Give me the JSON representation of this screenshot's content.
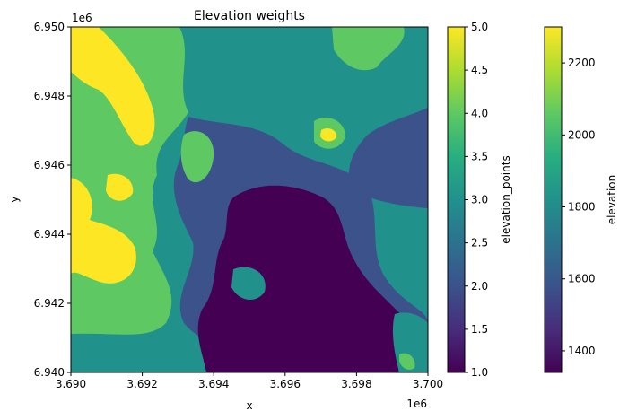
{
  "chart_data": {
    "type": "heatmap",
    "title": "Elevation weights",
    "xlabel": "x",
    "ylabel": "y",
    "x_offset_label": "1e6",
    "y_offset_label": "1e6",
    "xlim": [
      3.69,
      3.7
    ],
    "ylim": [
      6.94,
      6.95
    ],
    "x_ticks": [
      "3.690",
      "3.692",
      "3.694",
      "3.696",
      "3.698",
      "3.700"
    ],
    "y_ticks": [
      "6.940",
      "6.942",
      "6.944",
      "6.946",
      "6.948",
      "6.950"
    ],
    "grid": false,
    "values": {
      "description_levels": [
        1,
        2,
        3,
        4,
        5
      ],
      "approximate_regions": [
        {
          "region": "upper-left ridge",
          "level": 5
        },
        {
          "region": "left-middle ridge",
          "level": 5
        },
        {
          "region": "upper-right plateau",
          "level": 3
        },
        {
          "region": "centre basin",
          "level": 1
        },
        {
          "region": "lower-centre basin",
          "level": 1
        },
        {
          "region": "right side",
          "level": 2
        }
      ]
    },
    "colorbars": [
      {
        "label": "elevation_points",
        "range": [
          1.0,
          5.0
        ],
        "ticks": [
          "1.0",
          "1.5",
          "2.0",
          "2.5",
          "3.0",
          "3.5",
          "4.0",
          "4.5",
          "5.0"
        ],
        "colormap": "viridis"
      },
      {
        "label": "elevation",
        "range": [
          1340,
          2300
        ],
        "ticks": [
          "1400",
          "1600",
          "1800",
          "2000",
          "2200"
        ],
        "colormap": "viridis"
      }
    ],
    "palette": {
      "level_1": "#440154",
      "level_2": "#3b528b",
      "level_3": "#21918c",
      "level_4": "#5ec962",
      "level_5": "#fde725"
    }
  }
}
